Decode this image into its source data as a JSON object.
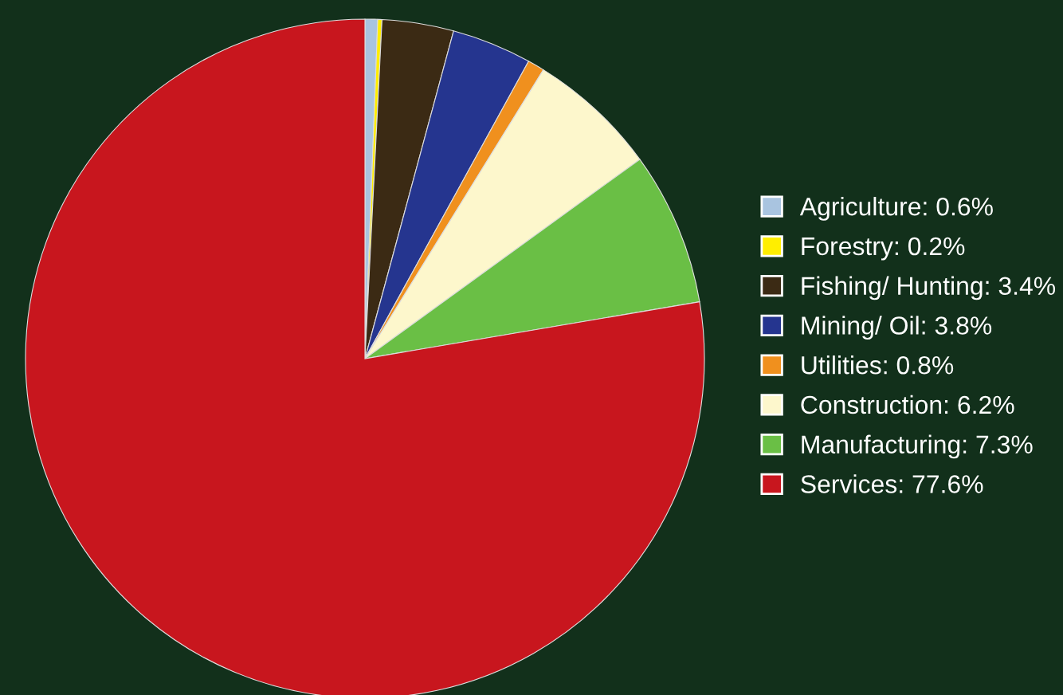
{
  "chart_data": {
    "type": "pie",
    "categories": [
      "Agriculture: 0.6%",
      "Forestry: 0.2%",
      "Fishing/ Hunting: 3.4%",
      "Mining/ Oil: 3.8%",
      "Utilities: 0.8%",
      "Construction: 6.2%",
      "Manufacturing: 7.3%",
      "Services: 77.6%"
    ],
    "values": [
      0.6,
      0.2,
      3.4,
      3.8,
      0.8,
      6.2,
      7.3,
      77.6
    ],
    "colors": [
      "#a9c4e0",
      "#ffee00",
      "#3b2a14",
      "#25358f",
      "#f0901e",
      "#fdf7cc",
      "#6abf45",
      "#c8161e"
    ],
    "legend": "right"
  }
}
